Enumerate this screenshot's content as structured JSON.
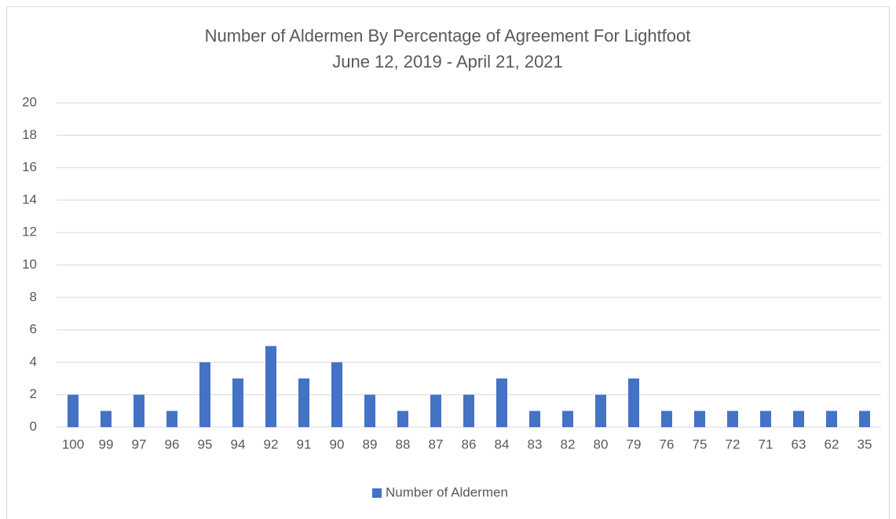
{
  "chart_data": {
    "type": "bar",
    "title": "Number of Aldermen By Percentage of Agreement For Lightfoot",
    "subtitle": "June 12, 2019 - April 21, 2021",
    "categories": [
      "100",
      "99",
      "97",
      "96",
      "95",
      "94",
      "92",
      "91",
      "90",
      "89",
      "88",
      "87",
      "86",
      "84",
      "83",
      "82",
      "80",
      "79",
      "76",
      "75",
      "72",
      "71",
      "63",
      "62",
      "35"
    ],
    "series": [
      {
        "name": "Number of Aldermen",
        "color": "#4472c4",
        "values": [
          2,
          1,
          2,
          1,
          4,
          3,
          5,
          3,
          4,
          2,
          1,
          2,
          2,
          3,
          1,
          1,
          2,
          3,
          1,
          1,
          1,
          1,
          1,
          1,
          1
        ]
      }
    ],
    "ylim": [
      0,
      20
    ],
    "yticks": [
      0,
      2,
      4,
      6,
      8,
      10,
      12,
      14,
      16,
      18,
      20
    ],
    "grid": true,
    "legend": "bottom"
  }
}
